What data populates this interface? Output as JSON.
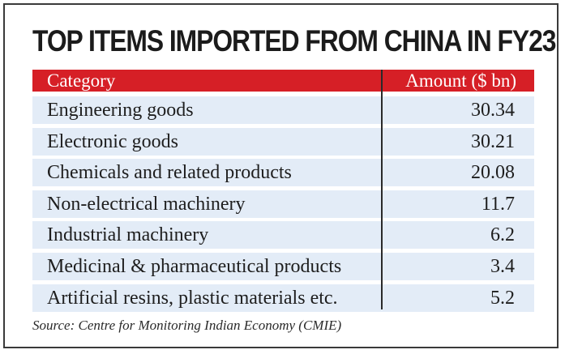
{
  "chart_data": {
    "type": "table",
    "title": "TOP ITEMS IMPORTED FROM CHINA IN FY23",
    "columns": [
      "Category",
      "Amount ($ bn)"
    ],
    "rows": [
      {
        "category": "Engineering goods",
        "amount": "30.34"
      },
      {
        "category": "Electronic goods",
        "amount": "30.21"
      },
      {
        "category": "Chemicals and related products",
        "amount": "20.08"
      },
      {
        "category": "Non-electrical machinery",
        "amount": "11.7"
      },
      {
        "category": "Industrial machinery",
        "amount": "6.2"
      },
      {
        "category": "Medicinal & pharmaceutical products",
        "amount": "3.4"
      },
      {
        "category": "Artificial resins, plastic materials etc.",
        "amount": "5.2"
      }
    ],
    "source": "Source: Centre for Monitoring Indian Economy (CMIE)"
  },
  "colors": {
    "header_bg": "#d61f26",
    "row_bg": "#e3ecf7"
  }
}
